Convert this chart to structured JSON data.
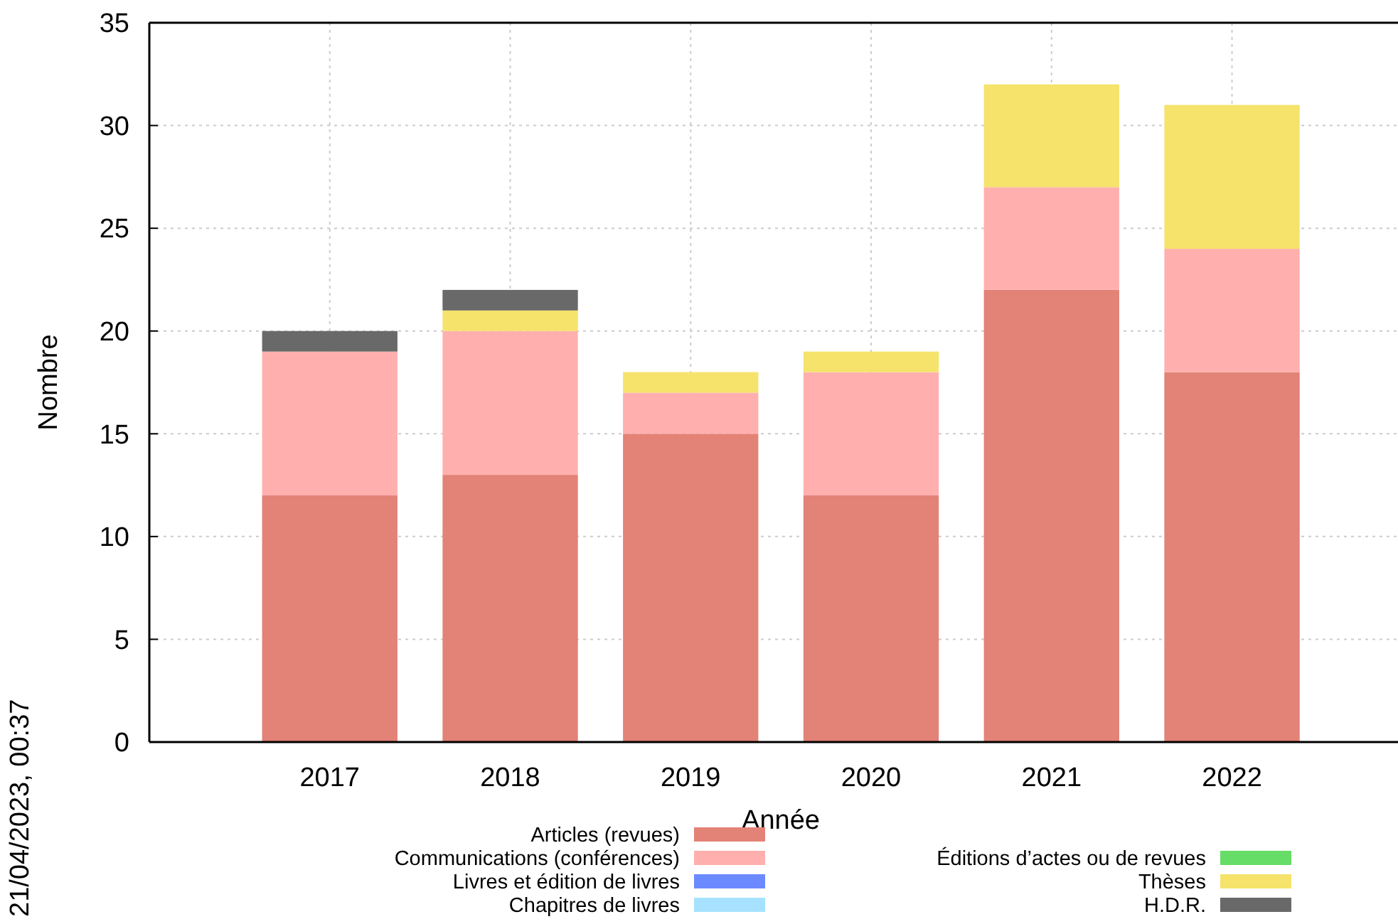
{
  "chart_data": {
    "type": "bar",
    "stacked": true,
    "xlabel": "Année",
    "ylabel": "Nombre",
    "categories": [
      "2017",
      "2018",
      "2019",
      "2020",
      "2021",
      "2022"
    ],
    "series": [
      {
        "name": "Articles (revues)",
        "color": "#e38276",
        "values": [
          12,
          13,
          15,
          12,
          22,
          18
        ]
      },
      {
        "name": "Communications (conférences)",
        "color": "#ffb0ae",
        "values": [
          7,
          7,
          2,
          6,
          5,
          6
        ]
      },
      {
        "name": "Livres et édition de livres",
        "color": "#6b8aff",
        "values": [
          0,
          0,
          0,
          0,
          0,
          0
        ]
      },
      {
        "name": "Chapitres de livres",
        "color": "#a6e2ff",
        "values": [
          0,
          0,
          0,
          0,
          0,
          0
        ]
      },
      {
        "name": "Éditions d’actes ou de revues",
        "color": "#66dd66",
        "values": [
          0,
          0,
          0,
          0,
          0,
          0
        ]
      },
      {
        "name": "Thèses",
        "color": "#f5e36b",
        "values": [
          0,
          1,
          1,
          1,
          5,
          7
        ]
      },
      {
        "name": "H.D.R.",
        "color": "#696969",
        "values": [
          1,
          1,
          0,
          0,
          0,
          0
        ]
      }
    ],
    "ylim": [
      0,
      35
    ],
    "yticks": [
      0,
      5,
      10,
      15,
      20,
      25,
      30,
      35
    ],
    "grid": true,
    "legend": "bottom",
    "annotations": [
      "21/04/2023, 00:37"
    ]
  }
}
